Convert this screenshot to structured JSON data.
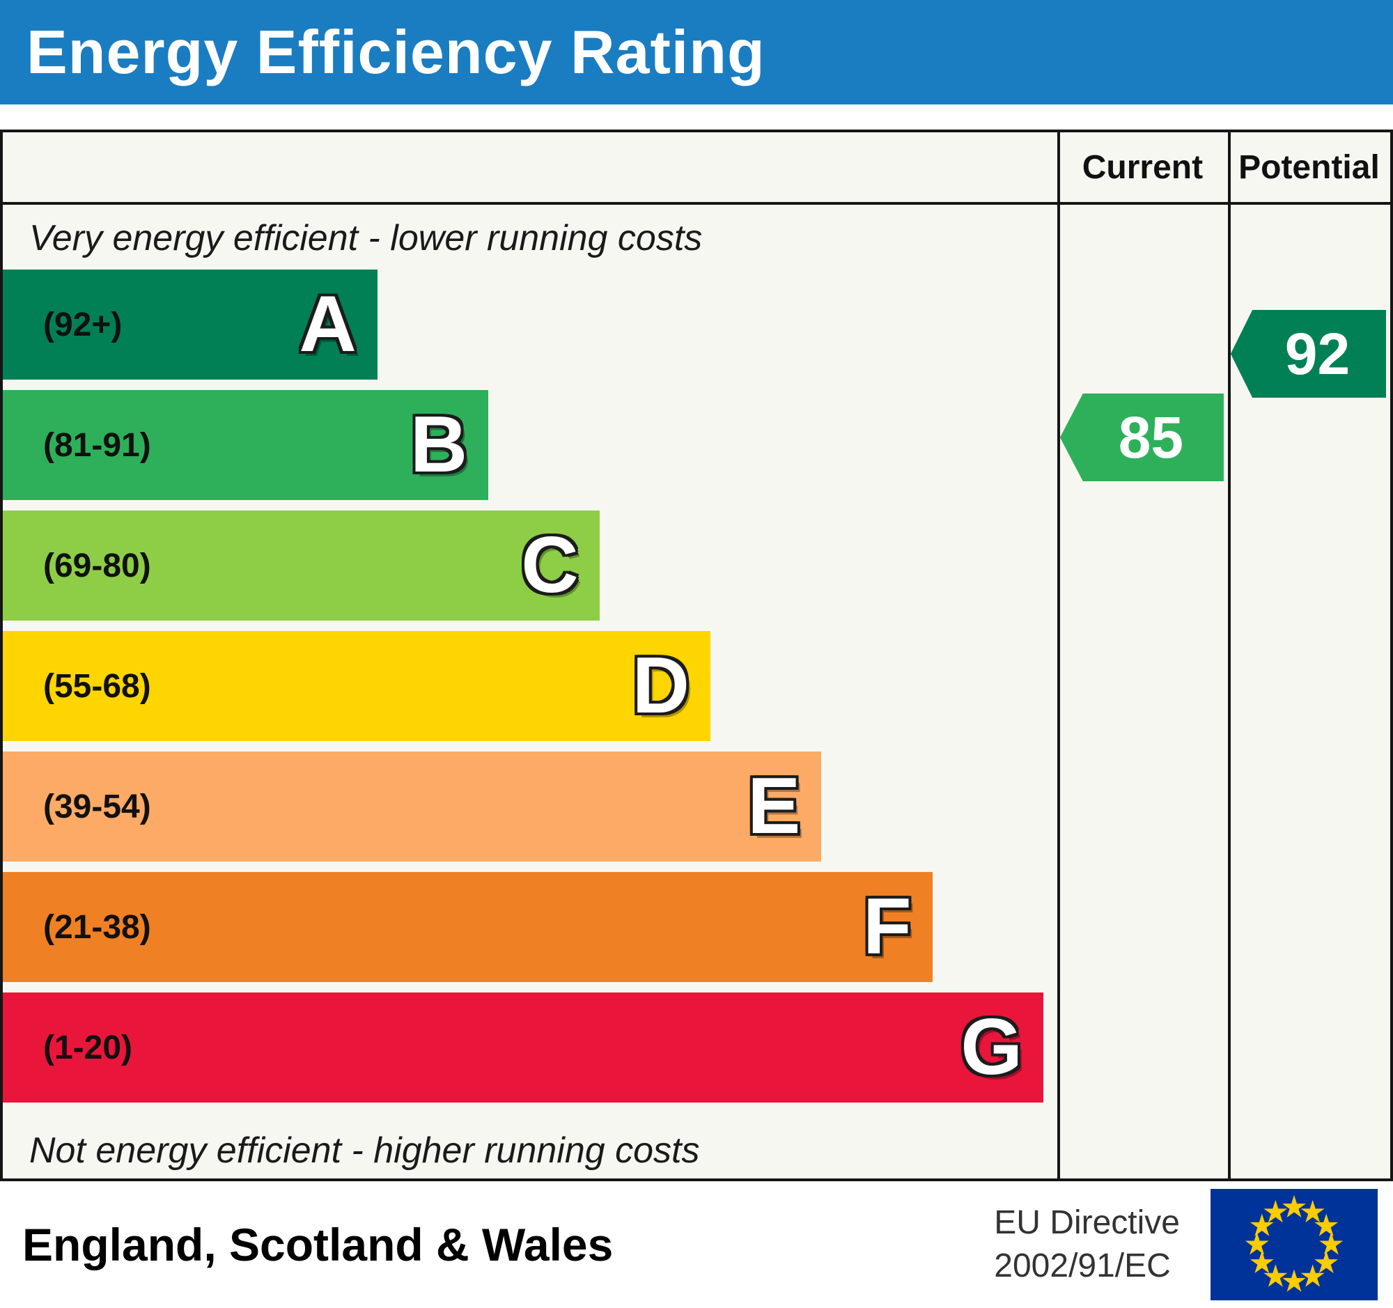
{
  "title": "Energy Efficiency Rating",
  "columns": {
    "current": "Current",
    "potential": "Potential"
  },
  "notes": {
    "top": "Very energy efficient - lower running costs",
    "bottom": "Not energy efficient - higher running costs"
  },
  "footer": {
    "region": "England, Scotland & Wales",
    "directive_line1": "EU Directive",
    "directive_line2": "2002/91/EC",
    "eu_flag": {
      "background": "#003399",
      "star": "#ffcc00"
    }
  },
  "colors": {
    "header_blue": "#1a7dc1",
    "chart_background": "#f7f7f2",
    "border": "#151515"
  },
  "chart_data": {
    "type": "bar",
    "title": "Energy Efficiency Rating",
    "xlabel": "",
    "ylabel": "",
    "categories": [
      "A",
      "B",
      "C",
      "D",
      "E",
      "F",
      "G"
    ],
    "bands": [
      {
        "letter": "A",
        "range": "(92+)",
        "min": 92,
        "max": 100,
        "color": "#008054",
        "width_pct": 27
      },
      {
        "letter": "B",
        "range": "(81-91)",
        "min": 81,
        "max": 91,
        "color": "#2eb05a",
        "width_pct": 35
      },
      {
        "letter": "C",
        "range": "(69-80)",
        "min": 69,
        "max": 80,
        "color": "#8dce46",
        "width_pct": 43
      },
      {
        "letter": "D",
        "range": "(55-68)",
        "min": 55,
        "max": 68,
        "color": "#ffd500",
        "width_pct": 51
      },
      {
        "letter": "E",
        "range": "(39-54)",
        "min": 39,
        "max": 54,
        "color": "#fcaa65",
        "width_pct": 59
      },
      {
        "letter": "F",
        "range": "(21-38)",
        "min": 21,
        "max": 38,
        "color": "#ef8023",
        "width_pct": 67
      },
      {
        "letter": "G",
        "range": "(1-20)",
        "min": 1,
        "max": 20,
        "color": "#e9153b",
        "width_pct": 75
      }
    ],
    "current": {
      "value": 85,
      "band": "B",
      "color": "#2eb05a"
    },
    "potential": {
      "value": 92,
      "band": "A",
      "color": "#008054"
    }
  }
}
